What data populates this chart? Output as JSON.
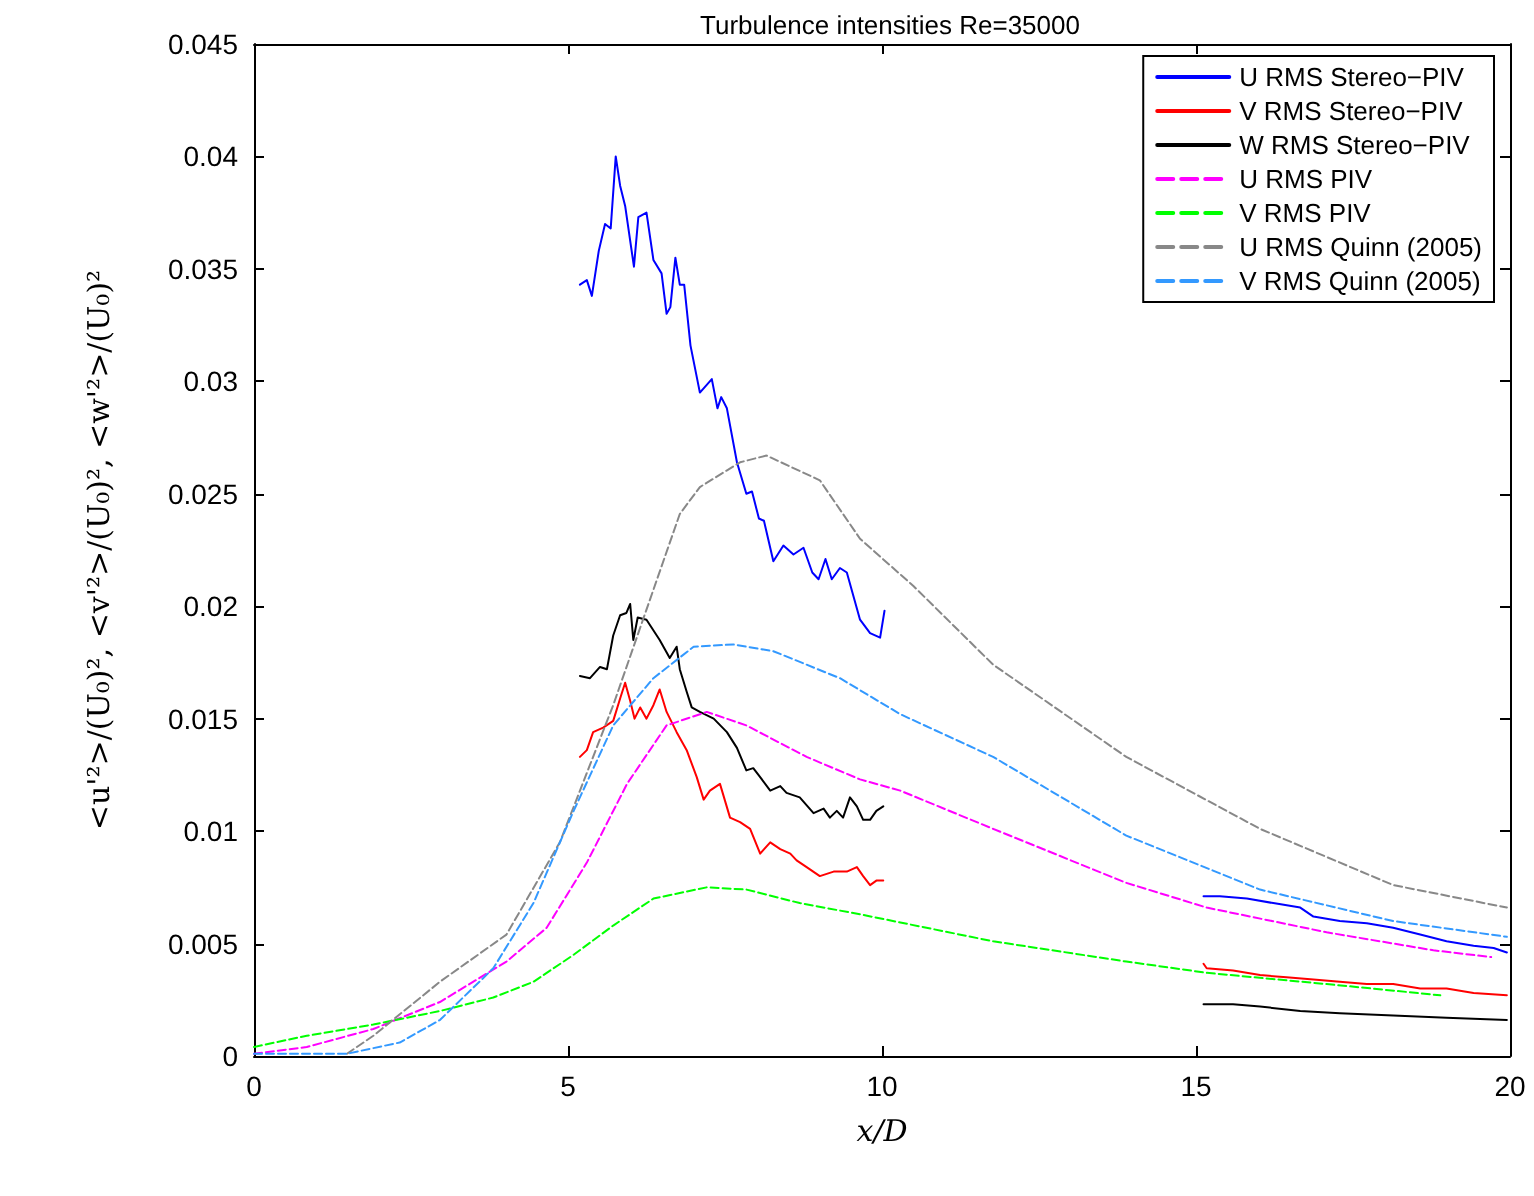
{
  "chart_data": {
    "type": "line",
    "title": "Turbulence intensities Re=35000",
    "xlabel": "x/D",
    "ylabel": "<u'²>/(U₀)², <v'²>/(U₀)², <w'²>/(U₀)²",
    "xlim": [
      0,
      20
    ],
    "xticks": [
      0,
      5,
      10,
      15,
      20
    ],
    "ylim": [
      0,
      0.045
    ],
    "yticks": [
      0,
      0.005,
      0.01,
      0.015,
      0.02,
      0.025,
      0.03,
      0.035,
      0.04,
      0.045
    ],
    "grid": false,
    "legend": "top right",
    "marker": "none",
    "series": [
      {
        "name": "U RMS Stereo−PIV",
        "color": "#0000ff",
        "line_style": "solid",
        "x": [
          5.19,
          5.3,
          5.38,
          5.49,
          5.59,
          5.68,
          5.76,
          5.83,
          5.91,
          6.05,
          6.12,
          6.25,
          6.36,
          6.49,
          6.57,
          6.63,
          6.71,
          6.78,
          6.85,
          6.95,
          7.1,
          7.29,
          7.38,
          7.44,
          7.53,
          7.69,
          7.84,
          7.93,
          8.04,
          8.12,
          8.27,
          8.43,
          8.59,
          8.75,
          8.89,
          8.99,
          9.1,
          9.2,
          9.33,
          9.44,
          9.65,
          9.81,
          9.97,
          10.04,
          12.5,
          15.12,
          15.38,
          15.81,
          16.23,
          16.66,
          16.87,
          17.29,
          17.72,
          18.14,
          18.57,
          18.99,
          19.42,
          19.74,
          19.95
        ],
        "values": [
          0.0343,
          0.0345,
          0.0338,
          0.0358,
          0.037,
          0.0368,
          0.04,
          0.0387,
          0.0378,
          0.0351,
          0.0373,
          0.0375,
          0.0354,
          0.0348,
          0.033,
          0.0333,
          0.0355,
          0.0343,
          0.0343,
          0.0316,
          0.0295,
          0.0301,
          0.0288,
          0.0293,
          0.0288,
          0.0264,
          0.025,
          0.0251,
          0.0239,
          0.0238,
          0.022,
          0.0227,
          0.0223,
          0.0226,
          0.0215,
          0.0212,
          0.0221,
          0.0212,
          0.0217,
          0.0215,
          0.0194,
          0.0188,
          0.0186,
          0.0198,
          null,
          0.0071,
          0.0071,
          0.007,
          0.0068,
          0.0066,
          0.0062,
          0.006,
          0.0059,
          0.0057,
          0.0054,
          0.0051,
          0.0049,
          0.0048,
          0.0046
        ]
      },
      {
        "name": "V RMS Stereo−PIV",
        "color": "#ff0000",
        "line_style": "solid",
        "x": [
          5.19,
          5.3,
          5.4,
          5.56,
          5.72,
          5.83,
          5.91,
          5.99,
          6.06,
          6.15,
          6.25,
          6.36,
          6.46,
          6.57,
          6.73,
          6.89,
          7.05,
          7.16,
          7.26,
          7.42,
          7.58,
          7.74,
          7.9,
          8.06,
          8.22,
          8.38,
          8.54,
          8.64,
          8.8,
          9.01,
          9.23,
          9.44,
          9.6,
          9.7,
          9.81,
          9.91,
          10.02,
          12.5,
          15.12,
          15.17,
          15.59,
          16.02,
          16.44,
          16.87,
          17.29,
          17.72,
          18.14,
          18.57,
          18.99,
          19.42,
          19.95
        ],
        "values": [
          0.0133,
          0.0136,
          0.0144,
          0.0146,
          0.0149,
          0.0159,
          0.0166,
          0.0158,
          0.015,
          0.0155,
          0.015,
          0.0156,
          0.0163,
          0.0153,
          0.0144,
          0.0136,
          0.0124,
          0.0114,
          0.0118,
          0.0121,
          0.0106,
          0.0104,
          0.0101,
          0.009,
          0.0095,
          0.0092,
          0.009,
          0.0087,
          0.0084,
          0.008,
          0.0082,
          0.0082,
          0.0084,
          0.008,
          0.0076,
          0.0078,
          0.0078,
          null,
          0.0041,
          0.0039,
          0.0038,
          0.0036,
          0.0035,
          0.0034,
          0.0033,
          0.0032,
          0.0032,
          0.003,
          0.003,
          0.0028,
          0.0027
        ]
      },
      {
        "name": "W RMS Stereo−PIV",
        "color": "#000000",
        "line_style": "solid",
        "x": [
          5.19,
          5.35,
          5.51,
          5.62,
          5.72,
          5.83,
          5.93,
          5.99,
          6.04,
          6.11,
          6.25,
          6.46,
          6.62,
          6.73,
          6.78,
          6.89,
          6.97,
          7.1,
          7.32,
          7.53,
          7.69,
          7.84,
          7.95,
          8.06,
          8.22,
          8.38,
          8.48,
          8.69,
          8.91,
          9.07,
          9.17,
          9.28,
          9.38,
          9.49,
          9.6,
          9.7,
          9.81,
          9.91,
          10.02,
          12.5,
          15.12,
          15.59,
          16.02,
          16.66,
          17.29,
          18.14,
          18.99,
          19.95
        ],
        "values": [
          0.0169,
          0.0168,
          0.0173,
          0.0172,
          0.0187,
          0.0196,
          0.0197,
          0.0201,
          0.0185,
          0.0195,
          0.0194,
          0.0185,
          0.0177,
          0.0182,
          0.0172,
          0.0162,
          0.0155,
          0.0153,
          0.015,
          0.0144,
          0.0137,
          0.0127,
          0.0128,
          0.0124,
          0.0118,
          0.012,
          0.0117,
          0.0115,
          0.0108,
          0.011,
          0.0106,
          0.0109,
          0.0106,
          0.0115,
          0.0111,
          0.0105,
          0.0105,
          0.0109,
          0.0111,
          null,
          0.0023,
          0.0023,
          0.0022,
          0.002,
          0.0019,
          0.0018,
          0.0017,
          0.0016
        ]
      },
      {
        "name": "U RMS PIV",
        "color": "#ff00ff",
        "line_style": "dashed",
        "x": [
          0,
          0.84,
          1.9,
          2.96,
          4.02,
          4.66,
          5.3,
          5.94,
          6.57,
          7.21,
          7.84,
          8.8,
          9.65,
          10.29,
          11.77,
          13.89,
          15.17,
          17.08,
          18.78,
          19.7
        ],
        "values": [
          0.0001,
          0.0004,
          0.0012,
          0.0024,
          0.0042,
          0.0057,
          0.0086,
          0.0121,
          0.0147,
          0.0153,
          0.0147,
          0.0133,
          0.0123,
          0.0118,
          0.0101,
          0.0077,
          0.0066,
          0.0055,
          0.0047,
          0.0044
        ]
      },
      {
        "name": "V RMS PIV",
        "color": "#00ff00",
        "line_style": "dashed",
        "x": [
          0,
          0.84,
          1.9,
          2.96,
          3.81,
          4.45,
          5.09,
          5.72,
          6.36,
          7.21,
          7.84,
          8.69,
          9.65,
          11.77,
          13.89,
          15.17,
          17.08,
          18.89
        ],
        "values": [
          0.0004,
          0.0009,
          0.0014,
          0.002,
          0.0026,
          0.0033,
          0.0045,
          0.0058,
          0.007,
          0.0075,
          0.0074,
          0.0068,
          0.0063,
          0.0051,
          0.0042,
          0.0037,
          0.0032,
          0.0027
        ]
      },
      {
        "name": "U RMS Quinn (2005)",
        "color": "#888888",
        "line_style": "dashed",
        "x": [
          1.48,
          1.9,
          2.96,
          4.02,
          4.87,
          5.72,
          6.78,
          7.1,
          7.74,
          8.16,
          9.01,
          9.65,
          10.5,
          11.77,
          13.89,
          16.02,
          18.14,
          19.95
        ],
        "values": [
          0.0001,
          0.0009,
          0.0033,
          0.0054,
          0.0095,
          0.0156,
          0.0241,
          0.0253,
          0.0264,
          0.0267,
          0.0256,
          0.023,
          0.0209,
          0.0174,
          0.0133,
          0.0101,
          0.0076,
          0.0066
        ]
      },
      {
        "name": "V RMS Quinn (2005)",
        "color": "#3399ff",
        "line_style": "dashed",
        "x": [
          0,
          1.48,
          2.32,
          2.96,
          3.81,
          4.45,
          5.09,
          5.72,
          6.36,
          7.0,
          7.63,
          8.27,
          9.33,
          10.29,
          11.77,
          13.89,
          16.02,
          18.14,
          19.95
        ],
        "values": [
          0.0001,
          0.0001,
          0.0006,
          0.0016,
          0.0039,
          0.0068,
          0.0109,
          0.0147,
          0.0168,
          0.0182,
          0.0183,
          0.018,
          0.0168,
          0.0152,
          0.0133,
          0.0098,
          0.0074,
          0.006,
          0.0053
        ]
      }
    ]
  }
}
